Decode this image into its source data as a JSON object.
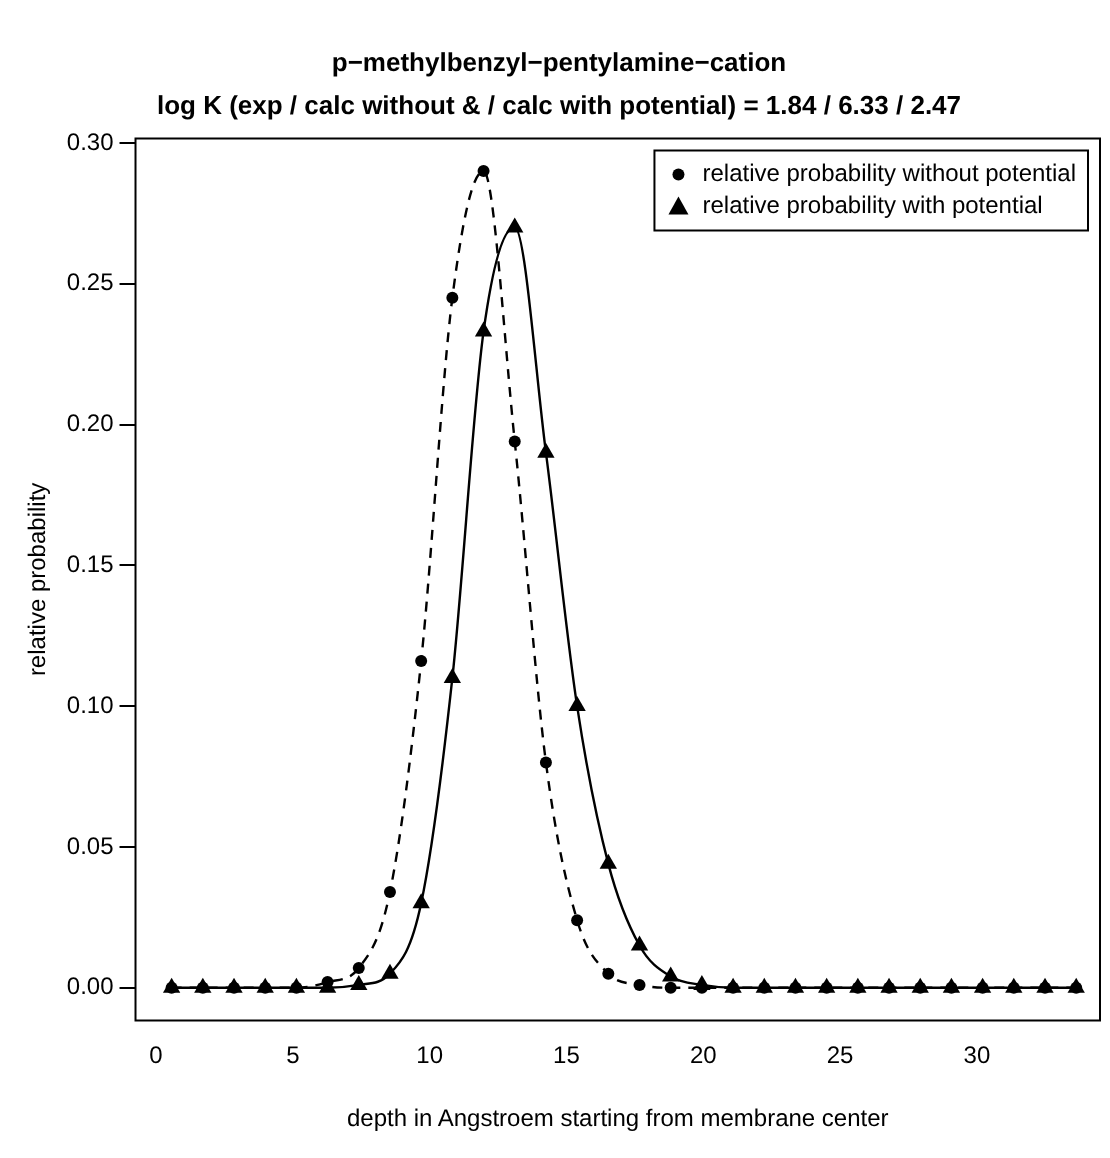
{
  "chart_data": {
    "type": "line",
    "title": "p−methylbenzyl−pentylamine−cation",
    "subtitle": "log K (exp / calc without & / calc with potential) = 1.84 / 6.33 / 2.47",
    "xlabel": "depth in Angstroem starting from membrane center",
    "ylabel": "relative probability",
    "x": [
      0.57,
      1.71,
      2.85,
      3.99,
      5.13,
      6.27,
      7.41,
      8.55,
      9.69,
      10.83,
      11.97,
      13.11,
      14.25,
      15.39,
      16.53,
      17.67,
      18.81,
      19.95,
      21.09,
      22.23,
      23.37,
      24.51,
      25.65,
      26.79,
      27.93,
      29.07,
      30.21,
      31.35,
      32.49,
      33.63
    ],
    "series": [
      {
        "name": "relative probability without potential",
        "color": "#000000",
        "marker": "circle",
        "line_style": "dashed",
        "values": [
          0,
          0,
          0,
          0,
          0,
          0.002,
          0.007,
          0.034,
          0.116,
          0.245,
          0.29,
          0.194,
          0.08,
          0.024,
          0.005,
          0.001,
          0,
          0,
          0,
          0,
          0,
          0,
          0,
          0,
          0,
          0,
          0,
          0,
          0,
          0
        ]
      },
      {
        "name": "relative probability with potential",
        "color": "#000000",
        "marker": "triangle",
        "line_style": "solid",
        "values": [
          0,
          0,
          0,
          0,
          0,
          0,
          0.001,
          0.005,
          0.03,
          0.11,
          0.233,
          0.27,
          0.19,
          0.1,
          0.044,
          0.015,
          0.004,
          0.001,
          0,
          0,
          0,
          0,
          0,
          0,
          0,
          0,
          0,
          0,
          0,
          0
        ]
      }
    ],
    "xlim": [
      -0.75,
      34.5
    ],
    "xticks": [
      0,
      5,
      10,
      15,
      20,
      25,
      30
    ],
    "ylim": [
      -0.0116,
      0.3016
    ],
    "yticks": [
      {
        "value": 0,
        "label": "0.00"
      },
      {
        "value": 0.05,
        "label": "0.05"
      },
      {
        "value": 0.1,
        "label": "0.10"
      },
      {
        "value": 0.15,
        "label": "0.15"
      },
      {
        "value": 0.2,
        "label": "0.20"
      },
      {
        "value": 0.25,
        "label": "0.25"
      },
      {
        "value": 0.3,
        "label": "0.30"
      }
    ],
    "grid": false,
    "legend": "top right"
  }
}
